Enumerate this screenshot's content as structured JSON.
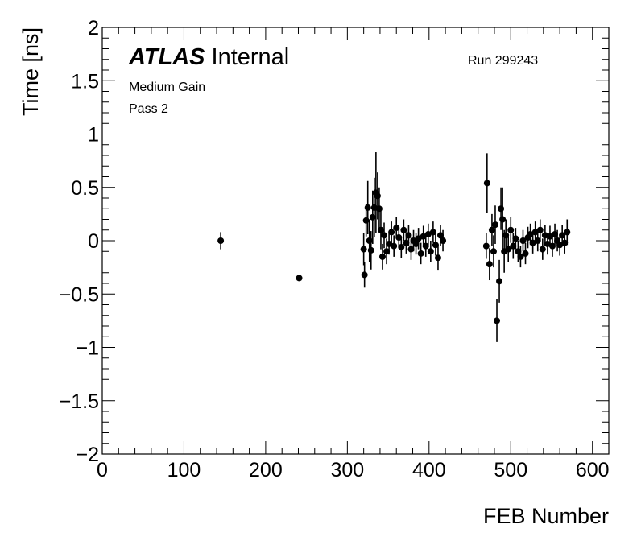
{
  "chart_data": {
    "type": "scatter",
    "xlabel": "FEB Number",
    "ylabel": "Time [ns]",
    "xlim": [
      0,
      620
    ],
    "ylim": [
      -2,
      2
    ],
    "x_ticks": [
      0,
      100,
      200,
      300,
      400,
      500,
      600
    ],
    "y_ticks": [
      2,
      1.5,
      1,
      0.5,
      0,
      -0.5,
      -1,
      -1.5,
      -2
    ],
    "y_tick_labels": [
      "2",
      "1.5",
      "1",
      "0.5",
      "0",
      "−0.5",
      "−1",
      "−1.5",
      "−2"
    ],
    "grid": false,
    "annotations": {
      "atlas_brand": "ATLAS",
      "atlas_status": "Internal",
      "run": "Run 299243",
      "gain": "Medium Gain",
      "pass": "Pass 2"
    },
    "points": [
      {
        "x": 145,
        "y": 0.0,
        "err": 0.08
      },
      {
        "x": 241,
        "y": -0.35,
        "err": 0.02
      },
      {
        "x": 320,
        "y": -0.08,
        "err": 0.15
      },
      {
        "x": 321,
        "y": -0.32,
        "err": 0.12
      },
      {
        "x": 323,
        "y": 0.19,
        "err": 0.15
      },
      {
        "x": 325,
        "y": 0.31,
        "err": 0.25
      },
      {
        "x": 327,
        "y": 0.0,
        "err": 0.2
      },
      {
        "x": 329,
        "y": -0.09,
        "err": 0.18
      },
      {
        "x": 331,
        "y": 0.22,
        "err": 0.25
      },
      {
        "x": 333,
        "y": 0.31,
        "err": 0.28
      },
      {
        "x": 335,
        "y": 0.45,
        "err": 0.38
      },
      {
        "x": 337,
        "y": 0.42,
        "err": 0.22
      },
      {
        "x": 339,
        "y": 0.3,
        "err": 0.2
      },
      {
        "x": 341,
        "y": 0.1,
        "err": 0.18
      },
      {
        "x": 343,
        "y": -0.15,
        "err": 0.12
      },
      {
        "x": 345,
        "y": 0.05,
        "err": 0.12
      },
      {
        "x": 348,
        "y": -0.1,
        "err": 0.12
      },
      {
        "x": 351,
        "y": -0.03,
        "err": 0.1
      },
      {
        "x": 354,
        "y": 0.08,
        "err": 0.1
      },
      {
        "x": 357,
        "y": -0.05,
        "err": 0.1
      },
      {
        "x": 360,
        "y": 0.12,
        "err": 0.1
      },
      {
        "x": 363,
        "y": 0.03,
        "err": 0.1
      },
      {
        "x": 366,
        "y": -0.06,
        "err": 0.1
      },
      {
        "x": 369,
        "y": 0.1,
        "err": 0.1
      },
      {
        "x": 372,
        "y": -0.02,
        "err": 0.1
      },
      {
        "x": 375,
        "y": 0.05,
        "err": 0.1
      },
      {
        "x": 378,
        "y": -0.08,
        "err": 0.1
      },
      {
        "x": 381,
        "y": 0.0,
        "err": 0.1
      },
      {
        "x": 384,
        "y": -0.03,
        "err": 0.1
      },
      {
        "x": 387,
        "y": 0.02,
        "err": 0.1
      },
      {
        "x": 390,
        "y": -0.12,
        "err": 0.1
      },
      {
        "x": 393,
        "y": 0.04,
        "err": 0.1
      },
      {
        "x": 396,
        "y": -0.05,
        "err": 0.1
      },
      {
        "x": 399,
        "y": 0.06,
        "err": 0.1
      },
      {
        "x": 402,
        "y": -0.1,
        "err": 0.1
      },
      {
        "x": 405,
        "y": 0.08,
        "err": 0.1
      },
      {
        "x": 408,
        "y": -0.04,
        "err": 0.1
      },
      {
        "x": 411,
        "y": -0.16,
        "err": 0.12
      },
      {
        "x": 414,
        "y": 0.05,
        "err": 0.1
      },
      {
        "x": 417,
        "y": 0.0,
        "err": 0.1
      },
      {
        "x": 470,
        "y": -0.05,
        "err": 0.12
      },
      {
        "x": 471,
        "y": 0.54,
        "err": 0.28
      },
      {
        "x": 474,
        "y": -0.22,
        "err": 0.15
      },
      {
        "x": 477,
        "y": 0.1,
        "err": 0.15
      },
      {
        "x": 479,
        "y": -0.1,
        "err": 0.15
      },
      {
        "x": 481,
        "y": 0.15,
        "err": 0.18
      },
      {
        "x": 483,
        "y": -0.75,
        "err": 0.2
      },
      {
        "x": 486,
        "y": -0.38,
        "err": 0.2
      },
      {
        "x": 488,
        "y": 0.3,
        "err": 0.2
      },
      {
        "x": 490,
        "y": 0.2,
        "err": 0.3
      },
      {
        "x": 492,
        "y": -0.1,
        "err": 0.2
      },
      {
        "x": 494,
        "y": 0.05,
        "err": 0.15
      },
      {
        "x": 497,
        "y": -0.08,
        "err": 0.12
      },
      {
        "x": 500,
        "y": 0.1,
        "err": 0.12
      },
      {
        "x": 503,
        "y": -0.05,
        "err": 0.12
      },
      {
        "x": 506,
        "y": 0.02,
        "err": 0.1
      },
      {
        "x": 509,
        "y": -0.1,
        "err": 0.1
      },
      {
        "x": 512,
        "y": -0.15,
        "err": 0.1
      },
      {
        "x": 515,
        "y": 0.0,
        "err": 0.1
      },
      {
        "x": 518,
        "y": -0.12,
        "err": 0.1
      },
      {
        "x": 521,
        "y": 0.03,
        "err": 0.1
      },
      {
        "x": 524,
        "y": 0.06,
        "err": 0.1
      },
      {
        "x": 527,
        "y": -0.02,
        "err": 0.1
      },
      {
        "x": 530,
        "y": 0.08,
        "err": 0.1
      },
      {
        "x": 533,
        "y": 0.0,
        "err": 0.1
      },
      {
        "x": 536,
        "y": 0.1,
        "err": 0.1
      },
      {
        "x": 539,
        "y": -0.08,
        "err": 0.1
      },
      {
        "x": 542,
        "y": 0.05,
        "err": 0.1
      },
      {
        "x": 545,
        "y": -0.03,
        "err": 0.1
      },
      {
        "x": 548,
        "y": 0.04,
        "err": 0.1
      },
      {
        "x": 551,
        "y": -0.05,
        "err": 0.1
      },
      {
        "x": 554,
        "y": 0.06,
        "err": 0.1
      },
      {
        "x": 557,
        "y": 0.0,
        "err": 0.1
      },
      {
        "x": 560,
        "y": -0.04,
        "err": 0.1
      },
      {
        "x": 563,
        "y": 0.05,
        "err": 0.1
      },
      {
        "x": 566,
        "y": -0.02,
        "err": 0.1
      },
      {
        "x": 569,
        "y": 0.08,
        "err": 0.12
      }
    ]
  }
}
